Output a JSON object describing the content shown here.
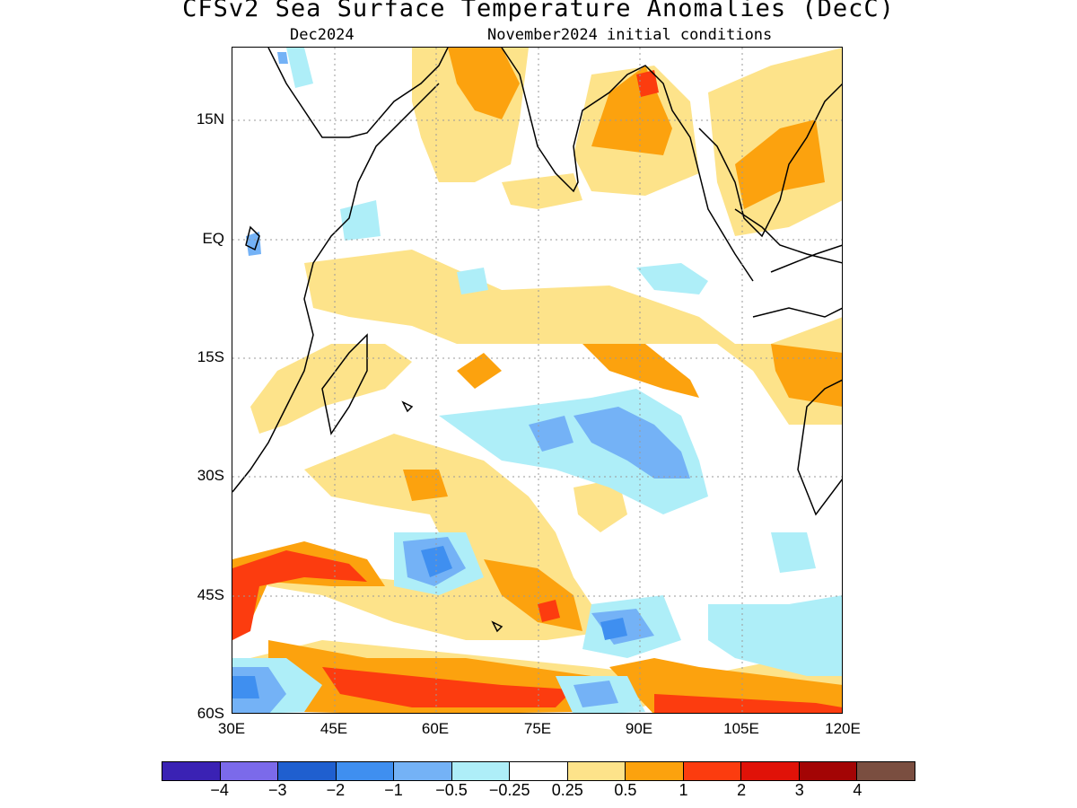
{
  "header": {
    "title": "CFSv2 Sea Surface Temperature Anomalies (DecC)",
    "valid_month": "Dec2024",
    "init_conditions": "November2024 initial conditions"
  },
  "map": {
    "lat_ticks": [
      "15N",
      "EQ",
      "15S",
      "30S",
      "45S",
      "60S"
    ],
    "lon_ticks": [
      "30E",
      "45E",
      "60E",
      "75E",
      "90E",
      "105E",
      "120E"
    ],
    "extent": {
      "lon_min": 30,
      "lon_max": 120,
      "lat_min": -60,
      "lat_max": 24
    }
  },
  "colorbar": {
    "colors": [
      "#3a22b4",
      "#7b6aea",
      "#1f5fcf",
      "#3f8ff0",
      "#74b2f6",
      "#aeeef8",
      "#ffffff",
      "#fde38a",
      "#fca20e",
      "#fc3c0f",
      "#e01208",
      "#a30505",
      "#7a4e40"
    ],
    "labels": [
      "−4",
      "−3",
      "−2",
      "−1",
      "−0.5",
      "−0.25",
      "0.25",
      "0.5",
      "1",
      "2",
      "3",
      "4"
    ]
  }
}
